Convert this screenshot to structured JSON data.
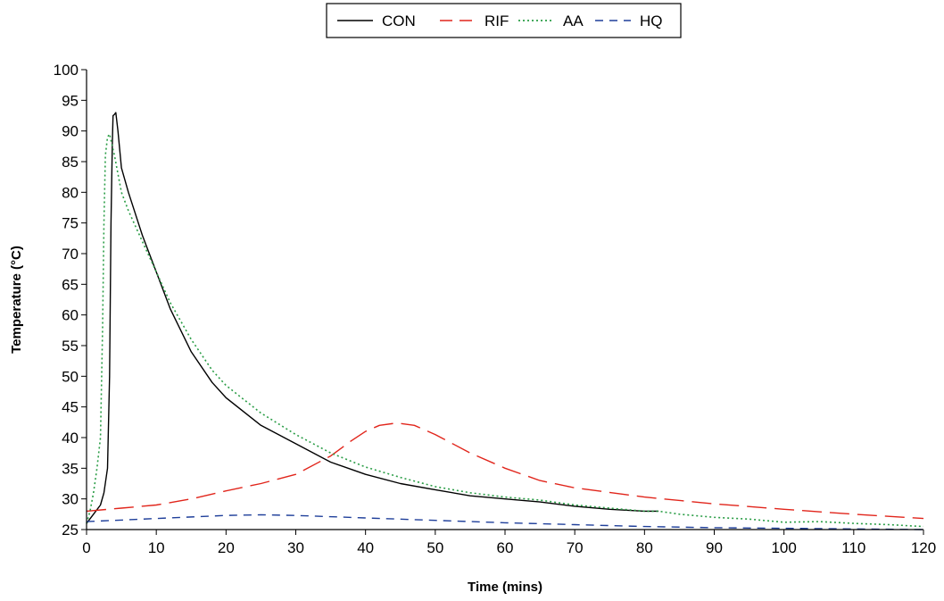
{
  "chart_data": {
    "type": "line",
    "title": "",
    "xlabel": "Time (mins)",
    "ylabel": "Temperature (°C)",
    "xlim": [
      0,
      120
    ],
    "ylim": [
      25,
      100
    ],
    "x_ticks": [
      0,
      10,
      20,
      30,
      40,
      50,
      60,
      70,
      80,
      90,
      100,
      110,
      120
    ],
    "y_ticks": [
      25,
      30,
      35,
      40,
      45,
      50,
      55,
      60,
      65,
      70,
      75,
      80,
      85,
      90,
      95,
      100
    ],
    "grid": false,
    "legend_position": "top",
    "series": [
      {
        "name": "CON",
        "color": "#000000",
        "dash": "solid",
        "x": [
          0,
          1,
          2,
          2.5,
          3,
          3.3,
          3.5,
          3.7,
          3.8,
          4,
          4.2,
          4.5,
          5,
          6,
          8,
          10,
          12,
          15,
          18,
          20,
          25,
          30,
          35,
          40,
          45,
          50,
          55,
          60,
          65,
          70,
          75,
          80,
          82
        ],
        "y": [
          26,
          27.5,
          29,
          31,
          35,
          50,
          75,
          88,
          92.5,
          92.7,
          93,
          90,
          84,
          80,
          73,
          67,
          61,
          54,
          49,
          46.5,
          42,
          39,
          36,
          34,
          32.5,
          31.5,
          30.5,
          30,
          29.5,
          28.8,
          28.3,
          28,
          28
        ]
      },
      {
        "name": "RIF",
        "color": "#e1251b",
        "dash": "long",
        "x": [
          0,
          5,
          10,
          15,
          20,
          25,
          30,
          35,
          38,
          40,
          42,
          44,
          45,
          47,
          50,
          55,
          60,
          65,
          70,
          80,
          90,
          100,
          110,
          120
        ],
        "y": [
          28,
          28.5,
          29,
          30,
          31.3,
          32.5,
          34,
          37,
          39.5,
          41,
          42,
          42.3,
          42.3,
          42,
          40.5,
          37.5,
          35,
          33,
          31.8,
          30.3,
          29.2,
          28.3,
          27.5,
          26.8
        ]
      },
      {
        "name": "AA",
        "color": "#2a9d46",
        "dash": "dotted",
        "x": [
          0,
          0.5,
          1,
          1.5,
          2,
          2.3,
          2.5,
          2.7,
          3,
          3.3,
          3.6,
          4,
          4.5,
          5,
          6,
          8,
          10,
          12,
          15,
          18,
          20,
          25,
          30,
          35,
          40,
          45,
          50,
          55,
          60,
          65,
          70,
          75,
          80,
          82,
          85,
          90,
          95,
          100,
          105,
          110,
          115,
          120
        ],
        "y": [
          26,
          28,
          31,
          35,
          40,
          58,
          75,
          86,
          89,
          89.5,
          88,
          86,
          83,
          80,
          77,
          72,
          67,
          62,
          56,
          51,
          48.5,
          44,
          40.5,
          37.5,
          35.2,
          33.5,
          32,
          31,
          30.3,
          29.8,
          29,
          28.5,
          28,
          28,
          27.5,
          27,
          26.7,
          26.2,
          26.3,
          26,
          25.8,
          25.5
        ]
      },
      {
        "name": "HQ",
        "color": "#1f3f9a",
        "dash": "dashed",
        "x": [
          0,
          10,
          20,
          25,
          30,
          40,
          50,
          60,
          70,
          80,
          90,
          100,
          110,
          120
        ],
        "y": [
          26.3,
          26.8,
          27.3,
          27.4,
          27.3,
          26.9,
          26.5,
          26.1,
          25.8,
          25.5,
          25.3,
          25.2,
          25.1,
          25.0
        ]
      }
    ]
  }
}
